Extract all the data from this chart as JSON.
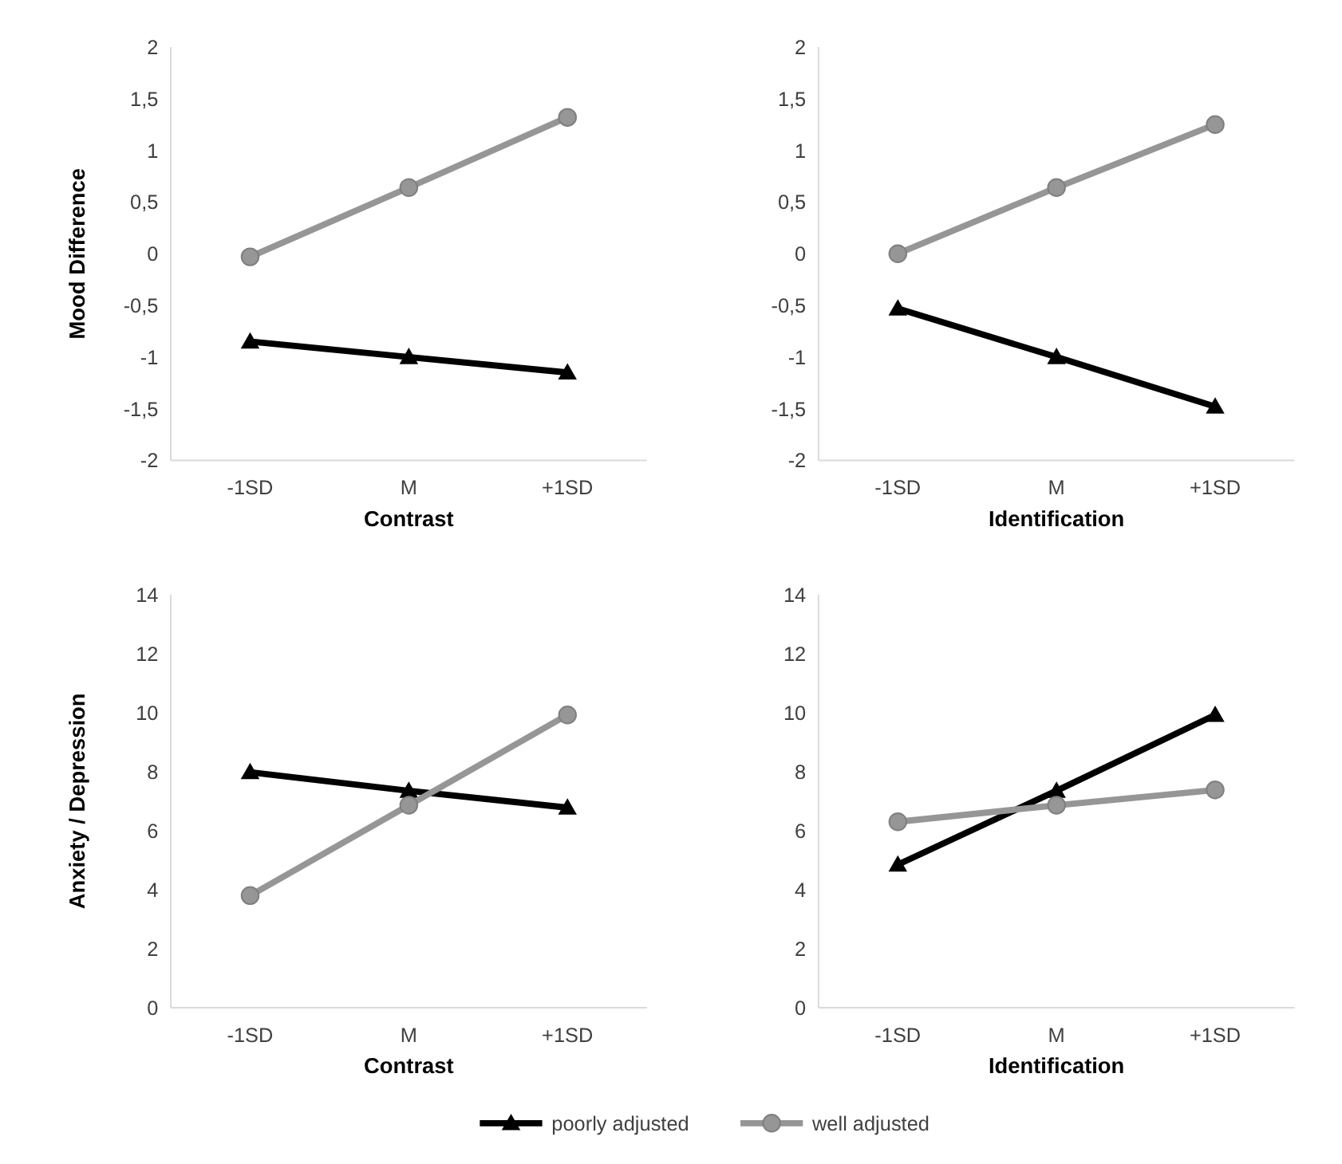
{
  "chart_data": [
    {
      "type": "line",
      "ylabel": "Mood Difference",
      "xlabel": "Contrast",
      "categories": [
        "-1SD",
        "M",
        "+1SD"
      ],
      "ylim": [
        -2,
        2
      ],
      "yticks": [
        -2,
        {
          "value": -1.5,
          "label": "-1,5"
        },
        -1,
        {
          "value": -0.5,
          "label": "-0,5"
        },
        0,
        {
          "value": 0.5,
          "label": "0,5"
        },
        1,
        {
          "value": 1.5,
          "label": "1,5"
        },
        2
      ],
      "series": [
        {
          "color": "#000000",
          "marker": "triangle",
          "values": [
            -0.85,
            -1.0,
            -1.15
          ]
        },
        {
          "color": "#969696",
          "marker": "circle",
          "values": [
            -0.03,
            0.64,
            1.32
          ]
        }
      ]
    },
    {
      "type": "line",
      "xlabel": "Identification",
      "categories": [
        "-1SD",
        "M",
        "+1SD"
      ],
      "ylim": [
        -2,
        2
      ],
      "yticks": [
        -2,
        {
          "value": -1.5,
          "label": "-1,5"
        },
        -1,
        {
          "value": -0.5,
          "label": "-0,5"
        },
        0,
        {
          "value": 0.5,
          "label": "0,5"
        },
        1,
        {
          "value": 1.5,
          "label": "1,5"
        },
        2
      ],
      "series": [
        {
          "color": "#000000",
          "marker": "triangle",
          "values": [
            -0.53,
            -1.0,
            -1.48
          ]
        },
        {
          "color": "#969696",
          "marker": "circle",
          "values": [
            0.0,
            0.64,
            1.25
          ]
        }
      ]
    },
    {
      "type": "line",
      "ylabel": "Anxiety / Depression",
      "xlabel": "Contrast",
      "categories": [
        "-1SD",
        "M",
        "+1SD"
      ],
      "ylim": [
        0,
        14
      ],
      "yticks": [
        0,
        2,
        4,
        6,
        8,
        10,
        12,
        14
      ],
      "series": [
        {
          "color": "#000000",
          "marker": "triangle",
          "values": [
            7.98,
            7.35,
            6.78
          ]
        },
        {
          "color": "#969696",
          "marker": "circle",
          "values": [
            3.8,
            6.86,
            9.92
          ]
        }
      ]
    },
    {
      "type": "line",
      "xlabel": "Identification",
      "categories": [
        "-1SD",
        "M",
        "+1SD"
      ],
      "ylim": [
        0,
        14
      ],
      "yticks": [
        0,
        2,
        4,
        6,
        8,
        10,
        12,
        14
      ],
      "legend": "bottom",
      "series": [
        {
          "name": "poorly adjusted",
          "color": "#000000",
          "marker": "triangle",
          "values": [
            4.85,
            7.35,
            9.92
          ]
        },
        {
          "name": "well adjusted",
          "color": "#969696",
          "marker": "circle",
          "values": [
            6.3,
            6.86,
            7.38
          ]
        }
      ]
    }
  ]
}
